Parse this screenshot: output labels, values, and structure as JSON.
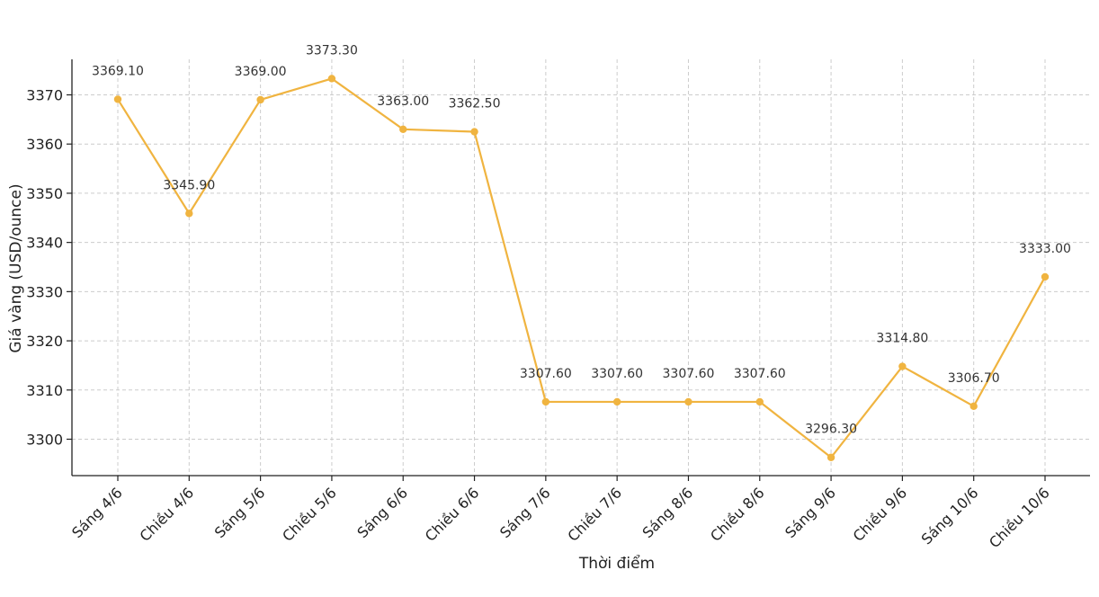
{
  "chart_data": {
    "type": "line",
    "xlabel": "Thời điểm",
    "ylabel": "Giá vàng (USD/ounce)",
    "categories": [
      "Sáng 4/6",
      "Chiều 4/6",
      "Sáng 5/6",
      "Chiều 5/6",
      "Sáng 6/6",
      "Chiều 6/6",
      "Sáng 7/6",
      "Chiều 7/6",
      "Sáng 8/6",
      "Chiều 8/6",
      "Sáng 9/6",
      "Chiều 9/6",
      "Sáng 10/6",
      "Chiều 10/6"
    ],
    "values": [
      3369.1,
      3345.9,
      3369.0,
      3373.3,
      3363.0,
      3362.5,
      3307.6,
      3307.6,
      3307.6,
      3307.6,
      3296.3,
      3314.8,
      3306.7,
      3333.0
    ],
    "data_labels": [
      "3369.10",
      "3345.90",
      "3369.00",
      "3373.30",
      "3363.00",
      "3362.50",
      "3307.60",
      "3307.60",
      "3307.60",
      "3307.60",
      "3296.30",
      "3314.80",
      "3306.70",
      "3333.00"
    ],
    "yticks": [
      3300,
      3310,
      3320,
      3330,
      3340,
      3350,
      3360,
      3370
    ],
    "ylim": [
      3292.7,
      3377.0
    ],
    "grid": true,
    "line_color": "#f0b440"
  }
}
